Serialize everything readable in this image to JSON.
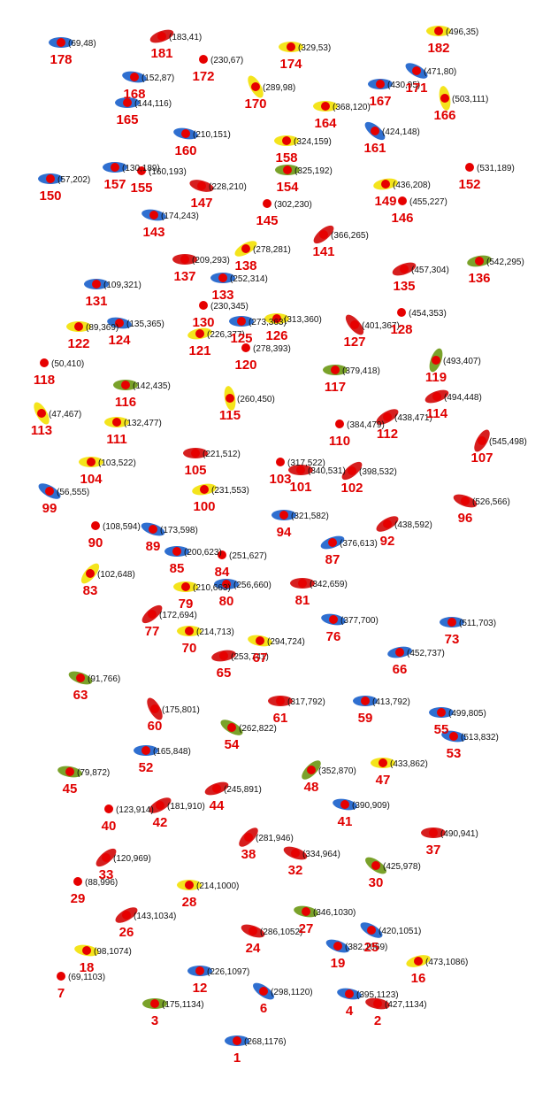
{
  "colors": {
    "red": "#d61f1f",
    "blue": "#2f6fd0",
    "yellow": "#f4e41c",
    "green": "#7aa22a",
    "dot": "#e60000",
    "label": "#e00000",
    "coord": "#111111"
  },
  "points": [
    {
      "id": "1",
      "coord": "(268,1176)",
      "color": "blue",
      "ang": 0
    },
    {
      "id": "2",
      "coord": "(427,1134)",
      "color": "red",
      "ang": 10
    },
    {
      "id": "3",
      "coord": "(175,1134)",
      "color": "green",
      "ang": 0
    },
    {
      "id": "4",
      "coord": "(395,1123)",
      "color": "blue",
      "ang": 10
    },
    {
      "id": "6",
      "coord": "(298,1120)",
      "color": "blue",
      "ang": 35
    },
    {
      "id": "7",
      "coord": "(69,1103)",
      "color": "none",
      "ang": 0
    },
    {
      "id": "12",
      "coord": "(226,1097)",
      "color": "blue",
      "ang": 0
    },
    {
      "id": "16",
      "coord": "(473,1086)",
      "color": "yellow",
      "ang": -15
    },
    {
      "id": "18",
      "coord": "(98,1074)",
      "color": "yellow",
      "ang": 10
    },
    {
      "id": "19",
      "coord": "(382,1069)",
      "color": "blue",
      "ang": 20
    },
    {
      "id": "24",
      "coord": "(286,1052)",
      "color": "red",
      "ang": 20
    },
    {
      "id": "25",
      "coord": "(420,1051)",
      "color": "blue",
      "ang": 30
    },
    {
      "id": "26",
      "coord": "(143,1034)",
      "color": "red",
      "ang": -30
    },
    {
      "id": "27",
      "coord": "(346,1030)",
      "color": "green",
      "ang": 10
    },
    {
      "id": "28",
      "coord": "(214,1000)",
      "color": "yellow",
      "ang": 0
    },
    {
      "id": "29",
      "coord": "(88,996)",
      "color": "none",
      "ang": 0
    },
    {
      "id": "30",
      "coord": "(425,978)",
      "color": "green",
      "ang": 35
    },
    {
      "id": "32",
      "coord": "(334,964)",
      "color": "red",
      "ang": 20
    },
    {
      "id": "33",
      "coord": "(120,969)",
      "color": "red",
      "ang": -40
    },
    {
      "id": "37",
      "coord": "(490,941)",
      "color": "red",
      "ang": 0
    },
    {
      "id": "38",
      "coord": "(281,946)",
      "color": "red",
      "ang": -45
    },
    {
      "id": "40",
      "coord": "(123,914)",
      "color": "none",
      "ang": 0
    },
    {
      "id": "41",
      "coord": "(390,909)",
      "color": "blue",
      "ang": 10
    },
    {
      "id": "42",
      "coord": "(181,910)",
      "color": "red",
      "ang": -30
    },
    {
      "id": "44",
      "coord": "(245,891)",
      "color": "red",
      "ang": -20
    },
    {
      "id": "45",
      "coord": "(79,872)",
      "color": "green",
      "ang": 10
    },
    {
      "id": "47",
      "coord": "(433,862)",
      "color": "yellow",
      "ang": 0
    },
    {
      "id": "48",
      "coord": "(352,870)",
      "color": "green",
      "ang": -45
    },
    {
      "id": "52",
      "coord": "(165,848)",
      "color": "blue",
      "ang": 0
    },
    {
      "id": "53",
      "coord": "(513,832)",
      "color": "blue",
      "ang": 10
    },
    {
      "id": "54",
      "coord": "(262,822)",
      "color": "green",
      "ang": 30
    },
    {
      "id": "55",
      "coord": "(499,805)",
      "color": "blue",
      "ang": 0
    },
    {
      "id": "59",
      "coord": "(413,792)",
      "color": "blue",
      "ang": 0
    },
    {
      "id": "60",
      "coord": "(175,801)",
      "color": "red",
      "ang": 60
    },
    {
      "id": "61",
      "coord": "(317,792)",
      "color": "red",
      "ang": 0
    },
    {
      "id": "63",
      "coord": "(91,766)",
      "color": "green",
      "ang": 20
    },
    {
      "id": "65",
      "coord": "(253,741)",
      "color": "red",
      "ang": -10
    },
    {
      "id": "66",
      "coord": "(452,737)",
      "color": "blue",
      "ang": -10
    },
    {
      "id": "67",
      "coord": "(294,724)",
      "color": "yellow",
      "ang": 10
    },
    {
      "id": "70",
      "coord": "(214,713)",
      "color": "yellow",
      "ang": 0
    },
    {
      "id": "73",
      "coord": "(511,703)",
      "color": "blue",
      "ang": 0
    },
    {
      "id": "76",
      "coord": "(377,700)",
      "color": "blue",
      "ang": 10
    },
    {
      "id": "77",
      "coord": "(172,694)",
      "color": "red",
      "ang": -40
    },
    {
      "id": "79",
      "coord": "(210,663)",
      "color": "yellow",
      "ang": 0
    },
    {
      "id": "80",
      "coord": "(256,660)",
      "color": "blue",
      "ang": 0
    },
    {
      "id": "81",
      "coord": "(342,659)",
      "color": "red",
      "ang": 0
    },
    {
      "id": "83",
      "coord": "(102,648)",
      "color": "yellow",
      "ang": -50
    },
    {
      "id": "84",
      "coord": "(251,627)",
      "color": "none",
      "ang": 0
    },
    {
      "id": "85",
      "coord": "(200,623)",
      "color": "blue",
      "ang": 0
    },
    {
      "id": "87",
      "coord": "(376,613)",
      "color": "blue",
      "ang": -20
    },
    {
      "id": "89",
      "coord": "(173,598)",
      "color": "blue",
      "ang": 20
    },
    {
      "id": "90",
      "coord": "(108,594)",
      "color": "none",
      "ang": 0
    },
    {
      "id": "92",
      "coord": "(438,592)",
      "color": "red",
      "ang": -30
    },
    {
      "id": "94",
      "coord": "(321,582)",
      "color": "blue",
      "ang": 0
    },
    {
      "id": "96",
      "coord": "(526,566)",
      "color": "red",
      "ang": 20
    },
    {
      "id": "99",
      "coord": "(56,555)",
      "color": "blue",
      "ang": 30
    },
    {
      "id": "100",
      "coord": "(231,553)",
      "color": "yellow",
      "ang": -10
    },
    {
      "id": "101",
      "coord": "(340,531)",
      "color": "red",
      "ang": 0
    },
    {
      "id": "102",
      "coord": "(398,532)",
      "color": "red",
      "ang": -40
    },
    {
      "id": "103",
      "coord": "(317,522)",
      "color": "none",
      "ang": 0
    },
    {
      "id": "104",
      "coord": "(103,522)",
      "color": "yellow",
      "ang": 0
    },
    {
      "id": "105",
      "coord": "(221,512)",
      "color": "red",
      "ang": 0
    },
    {
      "id": "107",
      "coord": "(545,498)",
      "color": "red",
      "ang": -60
    },
    {
      "id": "110",
      "coord": "(384,479)",
      "color": "none",
      "ang": 0
    },
    {
      "id": "111",
      "coord": "(132,477)",
      "color": "yellow",
      "ang": 0
    },
    {
      "id": "112",
      "coord": "(438,471)",
      "color": "red",
      "ang": -30
    },
    {
      "id": "113",
      "coord": "(47,467)",
      "color": "yellow",
      "ang": 60
    },
    {
      "id": "114",
      "coord": "(494,448)",
      "color": "red",
      "ang": -20
    },
    {
      "id": "115",
      "coord": "(260,450)",
      "color": "yellow",
      "ang": 80
    },
    {
      "id": "116",
      "coord": "(142,435)",
      "color": "green",
      "ang": 0
    },
    {
      "id": "117",
      "coord": "(379,418)",
      "color": "green",
      "ang": 0
    },
    {
      "id": "118",
      "coord": "(50,410)",
      "color": "none",
      "ang": 0
    },
    {
      "id": "119",
      "coord": "(493,407)",
      "color": "green",
      "ang": -70
    },
    {
      "id": "120",
      "coord": "(278,393)",
      "color": "none",
      "ang": 0
    },
    {
      "id": "121",
      "coord": "(226,377)",
      "color": "yellow",
      "ang": -10
    },
    {
      "id": "122",
      "coord": "(89,369)",
      "color": "yellow",
      "ang": 0
    },
    {
      "id": "124",
      "coord": "(135,365)",
      "color": "blue",
      "ang": 10
    },
    {
      "id": "125",
      "coord": "(273,363)",
      "color": "blue",
      "ang": 0
    },
    {
      "id": "126",
      "coord": "(313,360)",
      "color": "yellow",
      "ang": 0
    },
    {
      "id": "127",
      "coord": "(401,367)",
      "color": "red",
      "ang": 50
    },
    {
      "id": "128",
      "coord": "(454,353)",
      "color": "none",
      "ang": 0
    },
    {
      "id": "130",
      "coord": "(230,345)",
      "color": "none",
      "ang": 0
    },
    {
      "id": "131",
      "coord": "(109,321)",
      "color": "blue",
      "ang": 0
    },
    {
      "id": "133",
      "coord": "(252,314)",
      "color": "blue",
      "ang": 0
    },
    {
      "id": "135",
      "coord": "(457,304)",
      "color": "red",
      "ang": -20
    },
    {
      "id": "136",
      "coord": "(542,295)",
      "color": "green",
      "ang": -10
    },
    {
      "id": "137",
      "coord": "(209,293)",
      "color": "red",
      "ang": 0
    },
    {
      "id": "138",
      "coord": "(278,281)",
      "color": "yellow",
      "ang": -30
    },
    {
      "id": "141",
      "coord": "(366,265)",
      "color": "red",
      "ang": -40
    },
    {
      "id": "143",
      "coord": "(174,243)",
      "color": "blue",
      "ang": 10
    },
    {
      "id": "145",
      "coord": "(302,230)",
      "color": "none",
      "ang": 0
    },
    {
      "id": "146",
      "coord": "(455,227)",
      "color": "none",
      "ang": 0
    },
    {
      "id": "147",
      "coord": "(228,210)",
      "color": "red",
      "ang": 15
    },
    {
      "id": "149",
      "coord": "(436,208)",
      "color": "yellow",
      "ang": -10
    },
    {
      "id": "150",
      "coord": "(57,202)",
      "color": "blue",
      "ang": 0
    },
    {
      "id": "152",
      "coord": "(531,189)",
      "color": "none",
      "ang": 0
    },
    {
      "id": "154",
      "coord": "(325,192)",
      "color": "green",
      "ang": 0
    },
    {
      "id": "155",
      "coord": "(160,193)",
      "color": "none",
      "ang": 0
    },
    {
      "id": "157",
      "coord": "(130,189)",
      "color": "blue",
      "ang": 0
    },
    {
      "id": "158",
      "coord": "(324,159)",
      "color": "yellow",
      "ang": 0
    },
    {
      "id": "160",
      "coord": "(210,151)",
      "color": "blue",
      "ang": 10
    },
    {
      "id": "161",
      "coord": "(424,148)",
      "color": "blue",
      "ang": 40
    },
    {
      "id": "164",
      "coord": "(368,120)",
      "color": "yellow",
      "ang": 0
    },
    {
      "id": "165",
      "coord": "(144,116)",
      "color": "blue",
      "ang": 0
    },
    {
      "id": "166",
      "coord": "(503,111)",
      "color": "yellow",
      "ang": 80
    },
    {
      "id": "167",
      "coord": "(430,95)",
      "color": "blue",
      "ang": 0
    },
    {
      "id": "168",
      "coord": "(152,87)",
      "color": "blue",
      "ang": 10
    },
    {
      "id": "170",
      "coord": "(289,98)",
      "color": "yellow",
      "ang": 60
    },
    {
      "id": "171",
      "coord": "(471,80)",
      "color": "blue",
      "ang": 30
    },
    {
      "id": "172",
      "coord": "(230,67)",
      "color": "none",
      "ang": 0
    },
    {
      "id": "174",
      "coord": "(329,53)",
      "color": "yellow",
      "ang": 0
    },
    {
      "id": "178",
      "coord": "(69,48)",
      "color": "blue",
      "ang": 0
    },
    {
      "id": "181",
      "coord": "(183,41)",
      "color": "red",
      "ang": -20
    },
    {
      "id": "182",
      "coord": "(496,35)",
      "color": "yellow",
      "ang": 0
    }
  ]
}
